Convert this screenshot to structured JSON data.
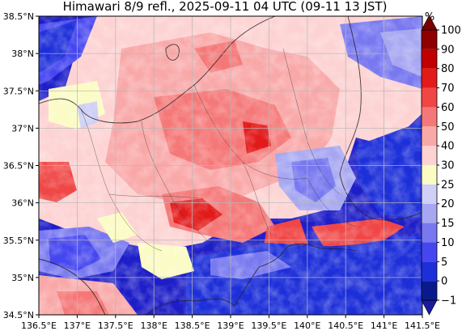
{
  "title": "Himawari 8/9 refl., 2025-09-11 04 UTC (09-11 13 JST)",
  "map": {
    "lon_range": [
      136.5,
      141.5
    ],
    "lat_range": [
      34.5,
      38.5
    ],
    "x_ticks": [
      "136.5°E",
      "137°E",
      "137.5°E",
      "138°E",
      "138.5°E",
      "139°E",
      "139.5°E",
      "140°E",
      "140.5°E",
      "141°E",
      "141.5°E"
    ],
    "y_ticks": [
      "34.5°N",
      "35°N",
      "35.5°N",
      "36°N",
      "36.5°N",
      "37°N",
      "37.5°N",
      "38°N",
      "38.5°N"
    ],
    "grid": true
  },
  "colorbar": {
    "unit": "%",
    "tick_labels": [
      "−1",
      "0",
      "5",
      "10",
      "15",
      "20",
      "25",
      "30",
      "40",
      "50",
      "60",
      "70",
      "80",
      "90",
      "100"
    ],
    "colors": [
      "#0a1a8c",
      "#1d2fd9",
      "#4646f0",
      "#7878f0",
      "#a6a6f2",
      "#cfcff7",
      "#fbfbc4",
      "#fdd2d2",
      "#f9a8a8",
      "#f57878",
      "#f04646",
      "#e31a1a",
      "#c00000",
      "#8e0000"
    ],
    "under_color": "#1a1aa0",
    "over_color": "#780000"
  }
}
